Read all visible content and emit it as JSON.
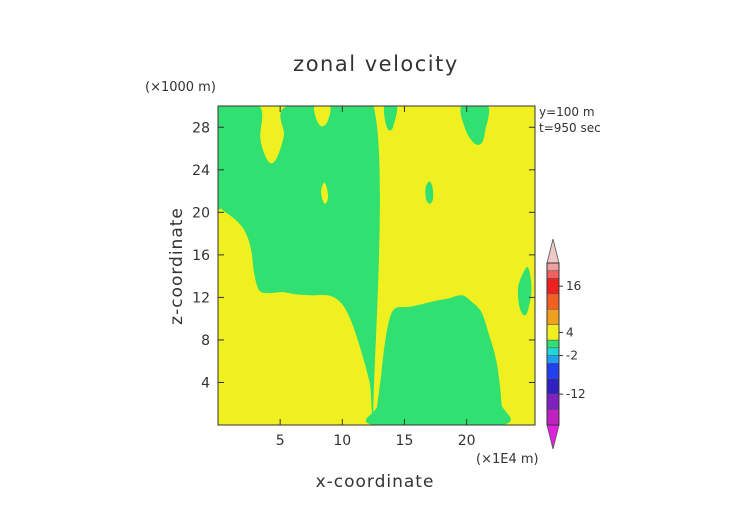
{
  "chart_data": {
    "type": "heatmap",
    "title": "zonal velocity",
    "xlabel": "x-coordinate",
    "ylabel": "z-coordinate",
    "x_unit": "(×1E4 m)",
    "y_unit": "(×1000 m)",
    "xlim": [
      0,
      25.5
    ],
    "ylim": [
      0,
      30
    ],
    "x_ticks": [
      5,
      10,
      15,
      20
    ],
    "y_ticks": [
      4,
      8,
      12,
      16,
      20,
      24,
      28
    ],
    "annotations": [
      "y=100 m",
      "t=950 sec"
    ],
    "background_level_color": "#f0f020",
    "regions": [
      {
        "name": "green-left",
        "color": "#30e070",
        "points": [
          [
            0.0,
            30
          ],
          [
            3.3,
            30
          ],
          [
            3.4,
            27
          ],
          [
            3.8,
            25.3
          ],
          [
            4.3,
            24.6
          ],
          [
            4.8,
            25.3
          ],
          [
            5.3,
            27.2
          ],
          [
            5.6,
            30
          ],
          [
            12.5,
            30
          ],
          [
            12.5,
            1.9
          ],
          [
            12.2,
            4
          ],
          [
            11.5,
            7
          ],
          [
            10.8,
            9.5
          ],
          [
            10.2,
            11
          ],
          [
            9.6,
            11.8
          ],
          [
            8.8,
            12.2
          ],
          [
            7.5,
            12.2
          ],
          [
            6.2,
            12.3
          ],
          [
            5.2,
            12.5
          ],
          [
            4.0,
            12.4
          ],
          [
            3.3,
            12.7
          ],
          [
            2.9,
            14.3
          ],
          [
            2.7,
            16.2
          ],
          [
            2.4,
            17.6
          ],
          [
            1.9,
            18.7
          ],
          [
            1.1,
            19.6
          ],
          [
            0.3,
            20.3
          ],
          [
            0.0,
            21.2
          ]
        ]
      },
      {
        "name": "yellow-left-island",
        "color": "#f0f020",
        "points": [
          [
            7.8,
            30
          ],
          [
            7.9,
            28.8
          ],
          [
            8.3,
            28.1
          ],
          [
            8.8,
            28.5
          ],
          [
            9.0,
            30
          ]
        ]
      },
      {
        "name": "yellow-left-blob",
        "color": "#f0f020",
        "points": [
          [
            8.55,
            22.8
          ],
          [
            8.75,
            22.3
          ],
          [
            8.85,
            21.4
          ],
          [
            8.65,
            20.8
          ],
          [
            8.4,
            21.2
          ],
          [
            8.3,
            22.1
          ]
        ]
      },
      {
        "name": "green-right-bottom",
        "color": "#30e070",
        "points": [
          [
            12.6,
            0.0
          ],
          [
            22.8,
            0.0
          ],
          [
            22.8,
            2.0
          ],
          [
            22.6,
            4.5
          ],
          [
            22.3,
            6.5
          ],
          [
            21.8,
            8.5
          ],
          [
            21.2,
            10.6
          ],
          [
            20.4,
            11.6
          ],
          [
            19.6,
            12.2
          ],
          [
            18.5,
            11.9
          ],
          [
            17.2,
            11.6
          ],
          [
            16.2,
            11.3
          ],
          [
            15.3,
            11.1
          ],
          [
            14.3,
            11.0
          ],
          [
            13.8,
            10.0
          ],
          [
            13.4,
            7.5
          ],
          [
            13.1,
            4.5
          ],
          [
            12.8,
            1.8
          ]
        ]
      },
      {
        "name": "green-right-top-a",
        "color": "#30e070",
        "points": [
          [
            13.4,
            30
          ],
          [
            13.5,
            28.3
          ],
          [
            13.8,
            27.7
          ],
          [
            14.1,
            28.1
          ],
          [
            14.4,
            30
          ]
        ]
      },
      {
        "name": "green-right-top-b",
        "color": "#30e070",
        "points": [
          [
            19.6,
            30
          ],
          [
            19.9,
            27.8
          ],
          [
            20.6,
            26.5
          ],
          [
            21.2,
            26.5
          ],
          [
            21.5,
            27.7
          ],
          [
            21.7,
            30
          ]
        ]
      },
      {
        "name": "green-right-blob-1",
        "color": "#30e070",
        "points": [
          [
            17.0,
            22.9
          ],
          [
            17.25,
            22.4
          ],
          [
            17.3,
            21.3
          ],
          [
            17.05,
            20.8
          ],
          [
            16.75,
            21.2
          ],
          [
            16.7,
            22.3
          ]
        ]
      },
      {
        "name": "green-right-blob-2",
        "color": "#30e070",
        "points": [
          [
            24.8,
            14.8
          ],
          [
            25.1,
            14.2
          ],
          [
            25.2,
            12.4
          ],
          [
            24.8,
            10.4
          ],
          [
            24.3,
            10.9
          ],
          [
            24.15,
            13.0
          ]
        ]
      }
    ],
    "colorbar": {
      "tick_labels": [
        "16",
        "4",
        "-2",
        "-12"
      ],
      "tick_values": [
        16,
        4,
        -2,
        -12
      ],
      "min": -20,
      "max": 22,
      "segments": [
        {
          "from": 20,
          "to": 22,
          "color": "#f0a0a0"
        },
        {
          "from": 18,
          "to": 20,
          "color": "#f06060"
        },
        {
          "from": 14,
          "to": 18,
          "color": "#f02020"
        },
        {
          "from": 10,
          "to": 14,
          "color": "#f06020"
        },
        {
          "from": 6,
          "to": 10,
          "color": "#f0a020"
        },
        {
          "from": 2,
          "to": 6,
          "color": "#f0f020"
        },
        {
          "from": 0,
          "to": 2,
          "color": "#30e070"
        },
        {
          "from": -2,
          "to": 0,
          "color": "#20d8d8"
        },
        {
          "from": -4,
          "to": -2,
          "color": "#20a0f0"
        },
        {
          "from": -8,
          "to": -4,
          "color": "#2040f0"
        },
        {
          "from": -12,
          "to": -8,
          "color": "#3020c0"
        },
        {
          "from": -16,
          "to": -12,
          "color": "#8020c0"
        },
        {
          "from": -20,
          "to": -16,
          "color": "#c020c0"
        }
      ],
      "top_arrow_color": "#f0c8c8",
      "bottom_arrow_color": "#e020e0"
    }
  }
}
